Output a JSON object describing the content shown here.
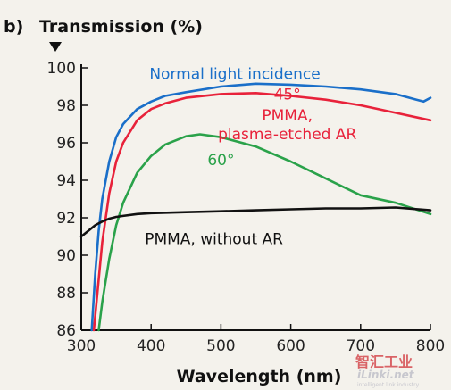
{
  "chart_data": {
    "type": "line",
    "panel_label": "b)",
    "ylabel": "Transmission (%)",
    "xlabel": "Wavelength (nm)",
    "xlim": [
      300,
      800
    ],
    "ylim": [
      86,
      100
    ],
    "x_ticks": [
      300,
      400,
      500,
      600,
      700,
      800
    ],
    "y_ticks": [
      86,
      88,
      90,
      92,
      94,
      96,
      98,
      100
    ],
    "grid": false,
    "legend": "none (inline labels)",
    "series": [
      {
        "name": "Normal light incidence",
        "color": "#1a6fc9",
        "x": [
          315,
          320,
          325,
          330,
          340,
          350,
          360,
          380,
          400,
          420,
          450,
          500,
          550,
          600,
          650,
          700,
          750,
          780,
          790,
          800
        ],
        "y": [
          86.0,
          89.0,
          91.3,
          93.0,
          95.0,
          96.3,
          97.0,
          97.8,
          98.2,
          98.5,
          98.7,
          99.0,
          99.15,
          99.1,
          99.0,
          98.85,
          98.6,
          98.3,
          98.2,
          98.4
        ]
      },
      {
        "name": "45° PMMA, plasma-etched AR",
        "color": "#e8223a",
        "x": [
          318,
          325,
          330,
          340,
          350,
          360,
          380,
          400,
          420,
          450,
          500,
          550,
          600,
          650,
          700,
          750,
          800
        ],
        "y": [
          86.0,
          88.7,
          90.7,
          93.3,
          95.0,
          96.0,
          97.2,
          97.8,
          98.1,
          98.4,
          98.6,
          98.65,
          98.5,
          98.3,
          98.0,
          97.6,
          97.2
        ]
      },
      {
        "name": "60°",
        "color": "#2aa24a",
        "x": [
          325,
          330,
          340,
          350,
          360,
          380,
          400,
          420,
          450,
          470,
          500,
          550,
          600,
          650,
          700,
          750,
          800
        ],
        "y": [
          86.0,
          87.5,
          89.8,
          91.6,
          92.8,
          94.4,
          95.3,
          95.9,
          96.35,
          96.45,
          96.3,
          95.8,
          95.0,
          94.1,
          93.2,
          92.8,
          92.2
        ]
      },
      {
        "name": "PMMA, without AR",
        "color": "#111111",
        "x": [
          300,
          310,
          320,
          330,
          340,
          350,
          360,
          380,
          400,
          450,
          500,
          550,
          600,
          650,
          700,
          750,
          800
        ],
        "y": [
          91.0,
          91.3,
          91.6,
          91.8,
          91.95,
          92.05,
          92.1,
          92.2,
          92.25,
          92.3,
          92.35,
          92.4,
          92.45,
          92.5,
          92.5,
          92.55,
          92.4
        ]
      }
    ],
    "annotations": [
      {
        "text": "Normal light incidence",
        "color": "#1a6fc9",
        "at": [
          520,
          99.4
        ]
      },
      {
        "text": "45°",
        "color": "#e8223a",
        "at": [
          595,
          98.3
        ]
      },
      {
        "text": "PMMA,",
        "color": "#e8223a",
        "at": [
          595,
          97.2
        ]
      },
      {
        "text": "plasma-etched AR",
        "color": "#e8223a",
        "at": [
          595,
          96.2
        ]
      },
      {
        "text": "60°",
        "color": "#2aa24a",
        "at": [
          500,
          94.8
        ]
      },
      {
        "text": "PMMA, without AR",
        "color": "#111111",
        "at": [
          490,
          90.6
        ]
      }
    ]
  },
  "watermark": {
    "line1": "智汇工业",
    "line2": "iLinki.net",
    "line3": "intelligent link industry"
  }
}
